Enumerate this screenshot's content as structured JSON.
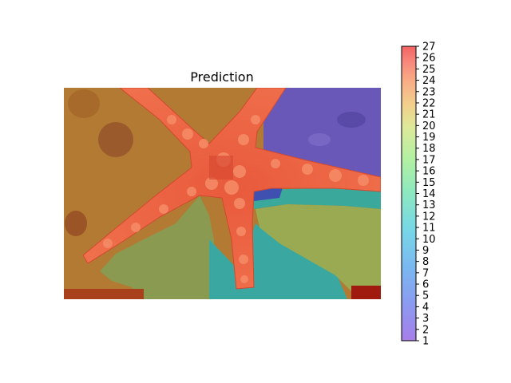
{
  "chart_data": {
    "type": "heatmap",
    "title": "Prediction",
    "colormap": "rainbow",
    "colorbar": {
      "min": 1,
      "max": 27,
      "ticks": [
        1,
        2,
        3,
        4,
        5,
        6,
        7,
        8,
        9,
        10,
        11,
        12,
        13,
        14,
        15,
        16,
        17,
        18,
        19,
        20,
        21,
        22,
        23,
        24,
        25,
        26,
        27
      ],
      "placement": "right"
    },
    "axes_visible": false,
    "regions": [
      {
        "name": "starfish",
        "label_value": 24
      },
      {
        "name": "upper-left-sediment",
        "label_value": 21
      },
      {
        "name": "upper-right-rock",
        "label_value": 3
      },
      {
        "name": "right-middle-water",
        "label_value": 12
      },
      {
        "name": "lower-left-algae",
        "label_value": 18
      },
      {
        "name": "lower-middle-water",
        "label_value": 10
      },
      {
        "name": "lower-right-algae",
        "label_value": 17
      },
      {
        "name": "bottom-corners",
        "label_value": 26
      }
    ]
  }
}
